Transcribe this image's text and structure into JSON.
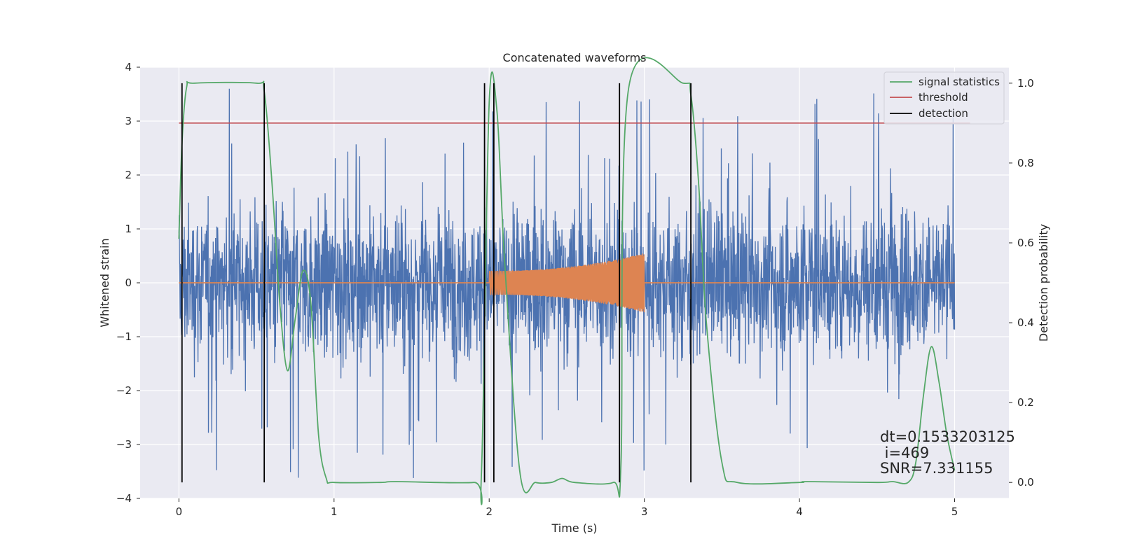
{
  "chart_data": {
    "type": "line",
    "title": "Concatenated waveforms",
    "xlabel": "Time (s)",
    "ylabel": "Whitened strain",
    "ylabel_right": "Detection probability",
    "xlim": [
      -0.25,
      5.35
    ],
    "ylim": [
      -4,
      4
    ],
    "ylim_right": [
      -0.04,
      1.04
    ],
    "x_ticks": [
      0,
      1,
      2,
      3,
      4,
      5
    ],
    "y_ticks": [
      -4,
      -3,
      -2,
      -1,
      0,
      1,
      2,
      3,
      4
    ],
    "y_ticks_right": [
      0.0,
      0.2,
      0.4,
      0.6,
      0.8,
      1.0
    ],
    "grid": true,
    "legend_position": "top-right",
    "series": [
      {
        "role": "whitened-strain",
        "color": "#4c72b0",
        "x_range": [
          0,
          5
        ],
        "envelope": 1.3,
        "peak_max": 3.65
      },
      {
        "role": "injected-waveform",
        "color": "#dd8452",
        "chirp_start": 2.0,
        "chirp_end": 3.0,
        "amp_start": 0.22,
        "amp_end": 0.55
      },
      {
        "name": "signal statistics",
        "color": "#55a868",
        "x": [
          0,
          0.02,
          0.05,
          0.1,
          0.5,
          0.55,
          0.6,
          0.65,
          0.7,
          0.75,
          0.8,
          0.85,
          0.9,
          0.95,
          1.0,
          1.3,
          1.4,
          1.9,
          1.95,
          2.0,
          2.05,
          2.1,
          2.2,
          2.3,
          2.4,
          2.47,
          2.55,
          2.8,
          2.85,
          2.9,
          3.25,
          3.3,
          3.35,
          3.4,
          3.5,
          3.6,
          4.0,
          4.05,
          4.5,
          4.6,
          4.7,
          4.75,
          4.8,
          4.85,
          4.9,
          4.95,
          5.0
        ],
        "y": [
          0.61,
          0.85,
          0.99,
          1.0,
          1.0,
          0.98,
          0.75,
          0.45,
          0.28,
          0.41,
          0.53,
          0.45,
          0.12,
          0.01,
          0.0,
          0.0,
          0.002,
          0.0,
          0.02,
          0.95,
          0.93,
          0.55,
          0.02,
          0.0,
          0.0,
          0.01,
          0.0,
          0.0,
          0.05,
          0.99,
          1.0,
          0.97,
          0.75,
          0.4,
          0.05,
          0.0,
          0.0,
          0.002,
          0.0,
          0.002,
          0.0,
          0.05,
          0.22,
          0.34,
          0.25,
          0.12,
          0.03
        ]
      },
      {
        "name": "threshold",
        "color": "#c44e52",
        "x": [
          0,
          5.1
        ],
        "y": [
          0.9,
          0.9
        ]
      },
      {
        "name": "detection",
        "color": "#000000",
        "x": [
          0.02,
          0.55,
          1.97,
          2.03,
          2.84,
          3.3
        ]
      }
    ],
    "annotations": [
      "dt=0.1533203125",
      " i=469",
      "SNR=7.331155"
    ]
  }
}
